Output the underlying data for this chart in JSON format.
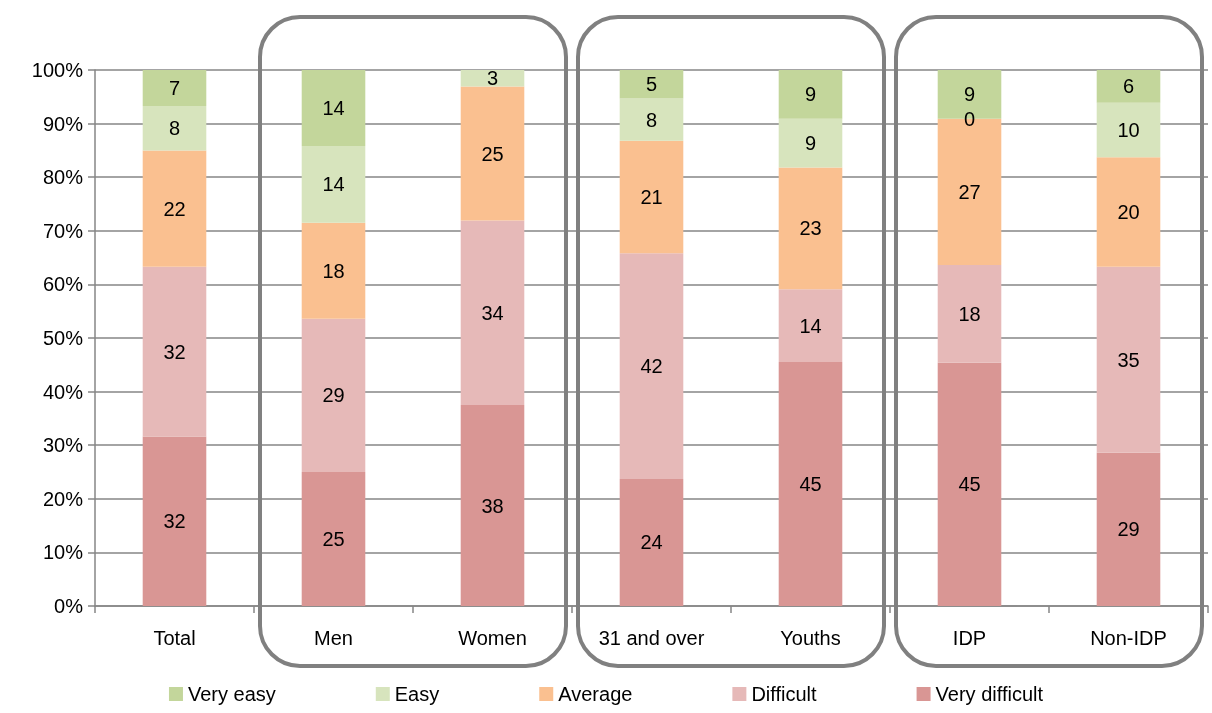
{
  "chart_data": {
    "type": "bar",
    "stacked": true,
    "categories": [
      "Total",
      "Men",
      "Women",
      "31 and over",
      "Youths",
      "IDP",
      "Non-IDP"
    ],
    "series": [
      {
        "name": "Very difficult",
        "color": "#d99694",
        "values": [
          31.6,
          25.0,
          37.5,
          23.7,
          45.5,
          45.4,
          28.6
        ],
        "value_labels": [
          "32",
          "25",
          "38",
          "24",
          "45",
          "45",
          "29"
        ]
      },
      {
        "name": "Difficult",
        "color": "#e6b9b8",
        "values": [
          31.7,
          28.6,
          34.4,
          42.1,
          13.6,
          18.2,
          34.7
        ],
        "value_labels": [
          "32",
          "29",
          "34",
          "42",
          "14",
          "18",
          "35"
        ]
      },
      {
        "name": "Average",
        "color": "#fac090",
        "values": [
          21.7,
          17.9,
          25.0,
          21.0,
          22.7,
          27.3,
          20.4
        ],
        "value_labels": [
          "22",
          "18",
          "25",
          "21",
          "23",
          "27",
          "20"
        ]
      },
      {
        "name": "Easy",
        "color": "#d7e4bd",
        "values": [
          8.3,
          14.3,
          3.1,
          7.9,
          9.1,
          0,
          10.2
        ],
        "value_labels": [
          "8",
          "14",
          "3",
          "8",
          "9",
          "0",
          "10"
        ]
      },
      {
        "name": "Very easy",
        "color": "#c3d69b",
        "values": [
          6.7,
          14.2,
          0,
          5.3,
          9.1,
          9.1,
          6.1
        ],
        "value_labels": [
          "7",
          "14",
          null,
          "5",
          "9",
          "9",
          "6"
        ]
      }
    ],
    "ylim": [
      0,
      100
    ],
    "yticks": [
      {
        "value": 0,
        "label": "0%"
      },
      {
        "value": 10,
        "label": "10%"
      },
      {
        "value": 20,
        "label": "20%"
      },
      {
        "value": 30,
        "label": "30%"
      },
      {
        "value": 40,
        "label": "40%"
      },
      {
        "value": 50,
        "label": "50%"
      },
      {
        "value": 60,
        "label": "60%"
      },
      {
        "value": 70,
        "label": "70%"
      },
      {
        "value": 80,
        "label": "80%"
      },
      {
        "value": 90,
        "label": "90%"
      },
      {
        "value": 100,
        "label": "100%"
      }
    ],
    "grid": "y",
    "legend": "bottom"
  }
}
